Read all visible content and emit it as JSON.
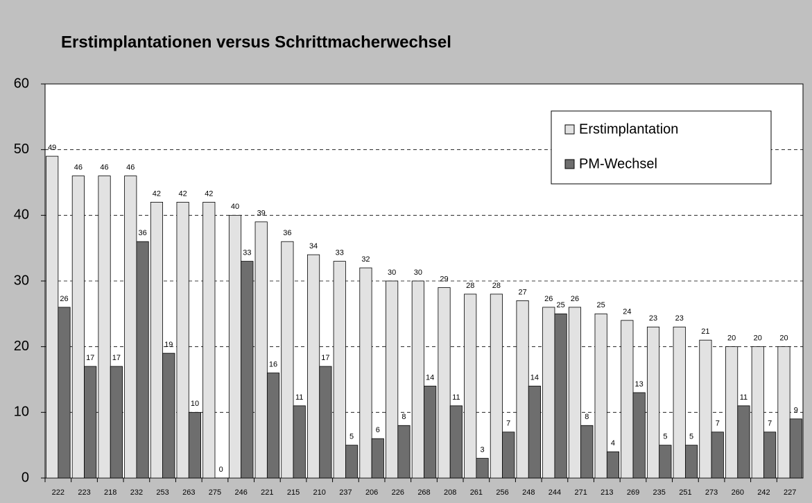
{
  "chart_data": {
    "type": "bar",
    "title": "Erstimplantationen versus Schrittmacherwechsel",
    "categories": [
      "222",
      "223",
      "218",
      "232",
      "253",
      "263",
      "275",
      "246",
      "221",
      "215",
      "210",
      "237",
      "206",
      "226",
      "268",
      "208",
      "261",
      "256",
      "248",
      "244",
      "271",
      "213",
      "269",
      "235",
      "251",
      "273",
      "260",
      "242",
      "227"
    ],
    "series": [
      {
        "name": "Erstimplantation",
        "color": "#e2e2e2",
        "values": [
          49,
          46,
          46,
          46,
          42,
          42,
          42,
          40,
          39,
          36,
          34,
          33,
          32,
          30,
          30,
          29,
          28,
          28,
          27,
          26,
          26,
          25,
          24,
          23,
          23,
          21,
          20,
          20,
          20
        ]
      },
      {
        "name": "PM-Wechsel",
        "color": "#6e6e6e",
        "values": [
          26,
          17,
          17,
          36,
          19,
          10,
          0,
          33,
          16,
          11,
          17,
          5,
          6,
          8,
          14,
          11,
          3,
          7,
          14,
          25,
          8,
          4,
          13,
          5,
          5,
          7,
          11,
          7,
          9
        ]
      }
    ],
    "ylim": [
      0,
      60
    ],
    "yticks": [
      0,
      10,
      20,
      30,
      40,
      50,
      60
    ],
    "grid": true,
    "legend": "upper right"
  }
}
